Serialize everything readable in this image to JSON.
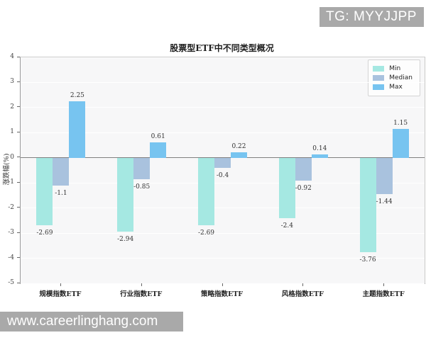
{
  "watermarks": {
    "top_right": "TG: MYYJJPP",
    "bottom_left": "www.careerlinghang.com"
  },
  "chart_data": {
    "type": "bar",
    "title": "股票型ETF中不同类型概况",
    "xlabel": "",
    "ylabel": "涨跌幅(%)",
    "categories": [
      "规模指数ETF",
      "行业指数ETF",
      "策略指数ETF",
      "风格指数ETF",
      "主题指数ETF"
    ],
    "series": [
      {
        "name": "Min",
        "color": "#a5e8e2",
        "values": [
          -2.69,
          -2.94,
          -2.69,
          -2.4,
          -3.76
        ]
      },
      {
        "name": "Median",
        "color": "#a9c2de",
        "values": [
          -1.1,
          -0.85,
          -0.4,
          -0.92,
          -1.44
        ]
      },
      {
        "name": "Max",
        "color": "#77c4f0",
        "values": [
          2.25,
          0.61,
          0.22,
          0.14,
          1.15
        ]
      }
    ],
    "ylim": [
      -5,
      4
    ],
    "yticks": [
      4,
      3,
      2,
      1,
      0,
      -1,
      -2,
      -3,
      -4,
      -5
    ],
    "grid": true,
    "bar_value_labels": true,
    "legend_position": "upper right",
    "colors": {
      "plot_background": "#f7f7f8",
      "gridline": "#ffffff",
      "zero_line": "#808080",
      "watermark_background": "#a9a9a9"
    }
  }
}
